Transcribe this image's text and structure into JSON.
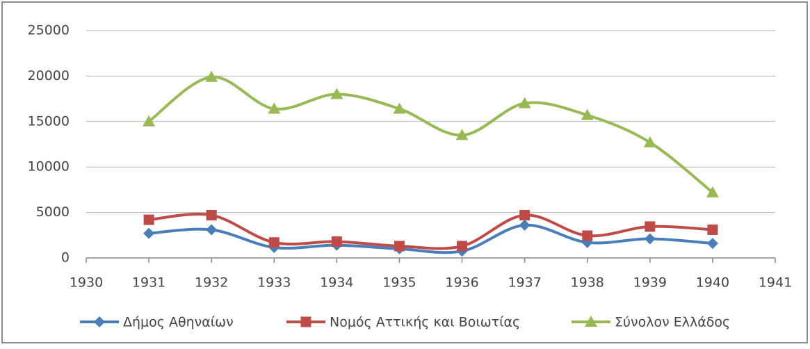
{
  "chart_data": {
    "type": "line",
    "x": [
      1931,
      1932,
      1933,
      1934,
      1935,
      1936,
      1937,
      1938,
      1939,
      1940
    ],
    "series": [
      {
        "name": "Δήμος Αθηναίων",
        "color": "#4a7ebb",
        "marker": "diamond",
        "values": [
          2700,
          3100,
          1150,
          1400,
          1000,
          750,
          3600,
          1700,
          2100,
          1600
        ]
      },
      {
        "name": "Νομός Αττικής και Βοιωτίας",
        "color": "#be4b48",
        "marker": "square",
        "values": [
          4200,
          4700,
          1700,
          1800,
          1300,
          1300,
          4700,
          2450,
          3450,
          3100
        ]
      },
      {
        "name": "Σύνολον Ελλάδος",
        "color": "#98b954",
        "marker": "triangle",
        "values": [
          15000,
          19900,
          16400,
          18000,
          16400,
          13500,
          17000,
          15700,
          12700,
          7200
        ]
      }
    ],
    "xlim": [
      1930,
      1941
    ],
    "xticks": [
      1930,
      1931,
      1932,
      1933,
      1934,
      1935,
      1936,
      1937,
      1938,
      1939,
      1940,
      1941
    ],
    "ylim": [
      0,
      25000
    ],
    "yticks": [
      0,
      5000,
      10000,
      15000,
      20000,
      25000
    ],
    "grid": true,
    "smooth": true,
    "legend": "bottom"
  }
}
